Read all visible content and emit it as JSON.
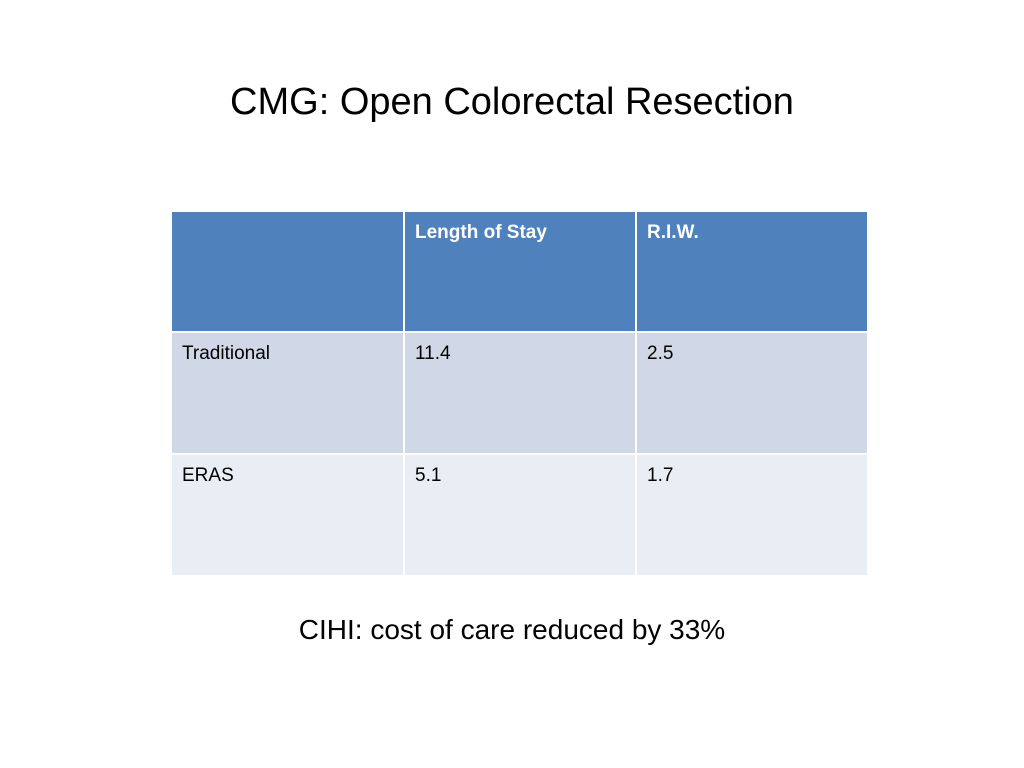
{
  "slide": {
    "title": "CMG: Open Colorectal Resection",
    "footnote": "CIHI: cost of care reduced by 33%"
  },
  "table": {
    "headers": [
      "",
      "Length of Stay",
      "R.I.W."
    ],
    "rows": [
      [
        "Traditional",
        "11.4",
        "2.5"
      ],
      [
        "ERAS",
        "5.1",
        "1.7"
      ]
    ]
  },
  "colors": {
    "header_fill": "#4f81bd",
    "row_band_1": "#d0d8e8",
    "row_band_2": "#e9edf4"
  }
}
